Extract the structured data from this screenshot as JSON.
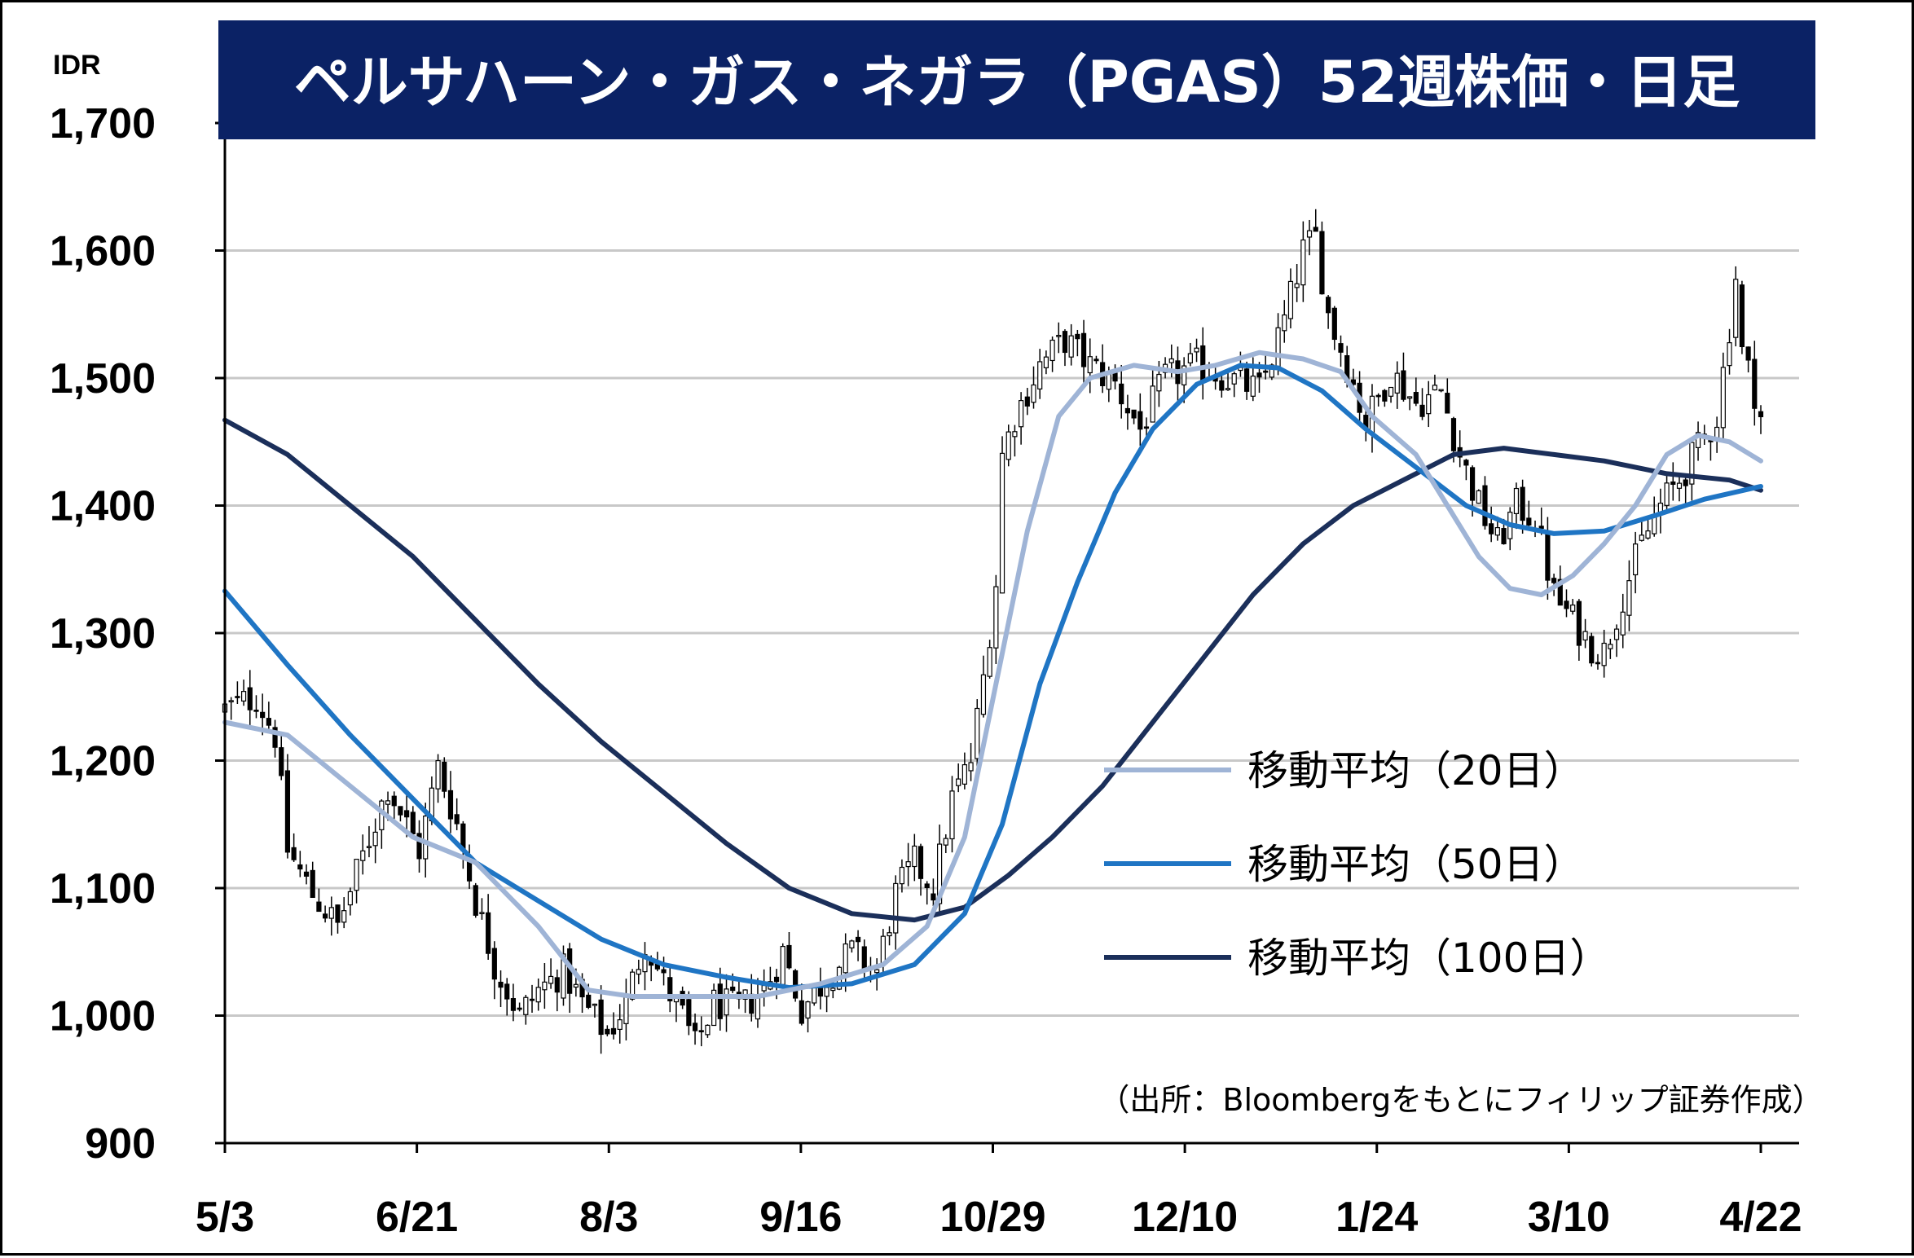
{
  "chart_data": {
    "type": "candlestick",
    "title": "ペルサハーン・ガス・ネガラ（PGAS）52週株価・日足",
    "y_unit": "IDR",
    "ylim": [
      900,
      1700
    ],
    "y_ticks": [
      "900",
      "1,000",
      "1,100",
      "1,200",
      "1,300",
      "1,400",
      "1,500",
      "1,600",
      "1,700"
    ],
    "x_tick_labels": [
      "5/3",
      "6/21",
      "8/3",
      "9/16",
      "10/29",
      "12/10",
      "1/24",
      "3/10",
      "4/22"
    ],
    "grid": "horizontal",
    "legend_placement": "right-middle",
    "source": "（出所：Bloombergをもとにフィリップ証券作成）",
    "colors": {
      "title_bg": "#0b2265",
      "candle": "#000000",
      "ma20": "#9fb4d6",
      "ma50": "#1f75c4",
      "ma100": "#1b2f5a",
      "grid": "#c8c8c8"
    },
    "candles": {
      "index_range": [
        0,
        245
      ],
      "anchors": [
        [
          0,
          1240
        ],
        [
          5,
          1250
        ],
        [
          8,
          1220
        ],
        [
          10,
          1130
        ],
        [
          14,
          1095
        ],
        [
          18,
          1070
        ],
        [
          22,
          1125
        ],
        [
          26,
          1180
        ],
        [
          29,
          1150
        ],
        [
          31,
          1130
        ],
        [
          34,
          1195
        ],
        [
          37,
          1150
        ],
        [
          40,
          1090
        ],
        [
          43,
          1040
        ],
        [
          47,
          1000
        ],
        [
          50,
          1020
        ],
        [
          54,
          1035
        ],
        [
          57,
          1010
        ],
        [
          61,
          985
        ],
        [
          64,
          1010
        ],
        [
          67,
          1060
        ],
        [
          70,
          1025
        ],
        [
          73,
          1000
        ],
        [
          75,
          975
        ],
        [
          78,
          1010
        ],
        [
          82,
          1005
        ],
        [
          86,
          1020
        ],
        [
          89,
          1050
        ],
        [
          92,
          1005
        ],
        [
          96,
          1030
        ],
        [
          100,
          1050
        ],
        [
          104,
          1035
        ],
        [
          107,
          1095
        ],
        [
          110,
          1120
        ],
        [
          113,
          1100
        ],
        [
          116,
          1170
        ],
        [
          119,
          1200
        ],
        [
          121,
          1265
        ],
        [
          123,
          1340
        ],
        [
          124,
          1440
        ],
        [
          126,
          1470
        ],
        [
          130,
          1510
        ],
        [
          134,
          1530
        ],
        [
          138,
          1510
        ],
        [
          142,
          1495
        ],
        [
          146,
          1460
        ],
        [
          150,
          1500
        ],
        [
          155,
          1510
        ],
        [
          160,
          1500
        ],
        [
          165,
          1490
        ],
        [
          169,
          1545
        ],
        [
          172,
          1600
        ],
        [
          174,
          1610
        ],
        [
          176,
          1550
        ],
        [
          179,
          1510
        ],
        [
          182,
          1465
        ],
        [
          186,
          1505
        ],
        [
          190,
          1480
        ],
        [
          194,
          1490
        ],
        [
          197,
          1440
        ],
        [
          200,
          1400
        ],
        [
          203,
          1370
        ],
        [
          206,
          1400
        ],
        [
          209,
          1390
        ],
        [
          212,
          1330
        ],
        [
          215,
          1310
        ],
        [
          218,
          1290
        ],
        [
          220,
          1285
        ],
        [
          223,
          1330
        ],
        [
          226,
          1370
        ],
        [
          229,
          1400
        ],
        [
          232,
          1420
        ],
        [
          235,
          1445
        ],
        [
          238,
          1470
        ],
        [
          240,
          1540
        ],
        [
          241,
          1580
        ],
        [
          242,
          1520
        ],
        [
          244,
          1490
        ],
        [
          245,
          1470
        ]
      ]
    },
    "series": [
      {
        "name": "移動平均（20日）",
        "color": "#9fb4d6",
        "points": [
          [
            0,
            1230
          ],
          [
            10,
            1220
          ],
          [
            20,
            1180
          ],
          [
            30,
            1140
          ],
          [
            40,
            1120
          ],
          [
            50,
            1070
          ],
          [
            58,
            1020
          ],
          [
            65,
            1015
          ],
          [
            75,
            1015
          ],
          [
            85,
            1015
          ],
          [
            95,
            1025
          ],
          [
            105,
            1040
          ],
          [
            112,
            1070
          ],
          [
            118,
            1140
          ],
          [
            123,
            1260
          ],
          [
            128,
            1380
          ],
          [
            133,
            1470
          ],
          [
            138,
            1500
          ],
          [
            145,
            1510
          ],
          [
            152,
            1505
          ],
          [
            158,
            1510
          ],
          [
            165,
            1520
          ],
          [
            172,
            1515
          ],
          [
            178,
            1505
          ],
          [
            183,
            1470
          ],
          [
            190,
            1440
          ],
          [
            195,
            1400
          ],
          [
            200,
            1360
          ],
          [
            205,
            1335
          ],
          [
            210,
            1330
          ],
          [
            215,
            1345
          ],
          [
            220,
            1370
          ],
          [
            225,
            1400
          ],
          [
            230,
            1440
          ],
          [
            235,
            1455
          ],
          [
            240,
            1450
          ],
          [
            245,
            1435
          ]
        ]
      },
      {
        "name": "移動平均（50日）",
        "color": "#1f75c4",
        "points": [
          [
            0,
            1333
          ],
          [
            10,
            1275
          ],
          [
            20,
            1220
          ],
          [
            30,
            1170
          ],
          [
            40,
            1120
          ],
          [
            50,
            1090
          ],
          [
            60,
            1060
          ],
          [
            70,
            1040
          ],
          [
            80,
            1030
          ],
          [
            90,
            1022
          ],
          [
            100,
            1025
          ],
          [
            110,
            1040
          ],
          [
            118,
            1080
          ],
          [
            124,
            1150
          ],
          [
            130,
            1260
          ],
          [
            136,
            1340
          ],
          [
            142,
            1410
          ],
          [
            148,
            1460
          ],
          [
            155,
            1495
          ],
          [
            162,
            1510
          ],
          [
            168,
            1508
          ],
          [
            175,
            1490
          ],
          [
            182,
            1460
          ],
          [
            190,
            1430
          ],
          [
            198,
            1400
          ],
          [
            205,
            1385
          ],
          [
            212,
            1378
          ],
          [
            220,
            1380
          ],
          [
            228,
            1392
          ],
          [
            236,
            1405
          ],
          [
            245,
            1415
          ]
        ]
      },
      {
        "name": "移動平均（100日）",
        "color": "#1b2f5a",
        "points": [
          [
            0,
            1467
          ],
          [
            10,
            1440
          ],
          [
            20,
            1400
          ],
          [
            30,
            1360
          ],
          [
            40,
            1310
          ],
          [
            50,
            1260
          ],
          [
            60,
            1215
          ],
          [
            70,
            1175
          ],
          [
            80,
            1135
          ],
          [
            90,
            1100
          ],
          [
            100,
            1080
          ],
          [
            110,
            1075
          ],
          [
            118,
            1085
          ],
          [
            125,
            1110
          ],
          [
            132,
            1140
          ],
          [
            140,
            1180
          ],
          [
            148,
            1230
          ],
          [
            156,
            1280
          ],
          [
            164,
            1330
          ],
          [
            172,
            1370
          ],
          [
            180,
            1400
          ],
          [
            188,
            1420
          ],
          [
            196,
            1440
          ],
          [
            204,
            1445
          ],
          [
            212,
            1440
          ],
          [
            220,
            1435
          ],
          [
            230,
            1425
          ],
          [
            240,
            1420
          ],
          [
            245,
            1412
          ]
        ]
      }
    ]
  }
}
